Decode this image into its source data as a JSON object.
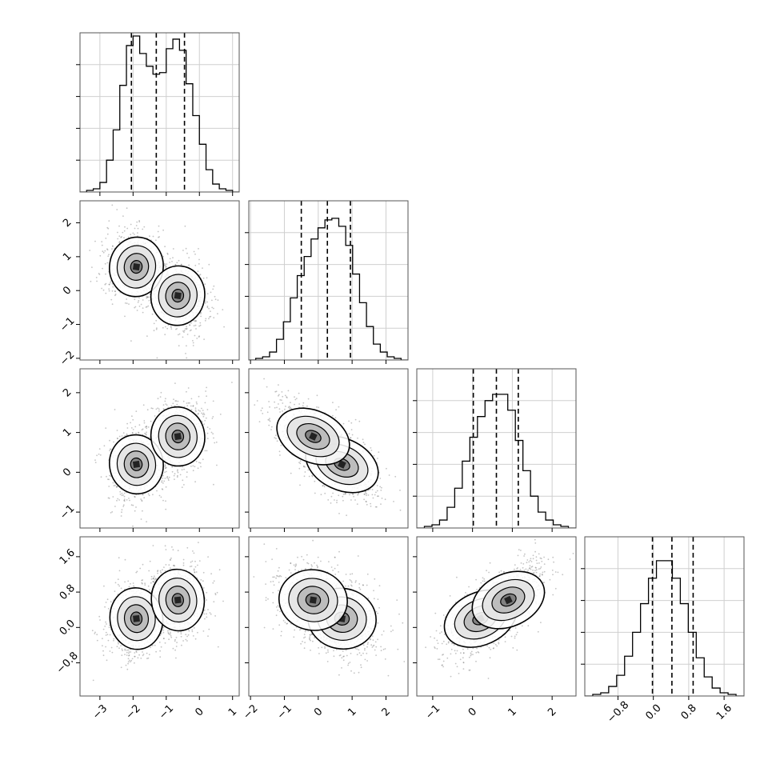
{
  "chart_data": {
    "type": "corner",
    "dimensions": 4,
    "axes": [
      {
        "range": [
          -3.6,
          1.2
        ],
        "ticks": [
          -3,
          -2,
          -1,
          0,
          1
        ],
        "tick_labels": [
          "−3",
          "−2",
          "−1",
          "0",
          "1"
        ]
      },
      {
        "range": [
          -2.05,
          2.65
        ],
        "ticks": [
          -2,
          -1,
          0,
          1,
          2
        ],
        "tick_labels": [
          "−2",
          "−1",
          "0",
          "1",
          "2"
        ]
      },
      {
        "range": [
          -1.4,
          2.6
        ],
        "ticks": [
          -1,
          0,
          1,
          2
        ],
        "tick_labels": [
          "−1",
          "0",
          "1",
          "2"
        ]
      },
      {
        "range": [
          -1.55,
          2.05
        ],
        "ticks": [
          -0.8,
          0.0,
          0.8,
          1.6
        ],
        "tick_labels": [
          "−0.8",
          "0.0",
          "0.8",
          "1.6"
        ]
      }
    ],
    "quantiles": [
      [
        -2.05,
        -1.3,
        -0.45
      ],
      [
        -0.5,
        0.27,
        0.95
      ],
      [
        0.02,
        0.6,
        1.15
      ],
      [
        -0.02,
        0.42,
        0.9
      ]
    ],
    "histograms": [
      [
        0,
        0.01,
        0.02,
        0.06,
        0.2,
        0.39,
        0.67,
        0.92,
        0.98,
        0.87,
        0.79,
        0.74,
        0.75,
        0.9,
        0.96,
        0.89,
        0.68,
        0.48,
        0.3,
        0.14,
        0.05,
        0.02,
        0.01,
        0
      ],
      [
        0,
        0.01,
        0.02,
        0.05,
        0.13,
        0.24,
        0.39,
        0.53,
        0.65,
        0.76,
        0.83,
        0.88,
        0.89,
        0.84,
        0.72,
        0.54,
        0.36,
        0.21,
        0.1,
        0.05,
        0.02,
        0.01,
        0
      ],
      [
        0,
        0.01,
        0.02,
        0.05,
        0.13,
        0.25,
        0.42,
        0.57,
        0.7,
        0.8,
        0.84,
        0.84,
        0.74,
        0.55,
        0.36,
        0.2,
        0.1,
        0.05,
        0.02,
        0.01,
        0
      ],
      [
        0,
        0.01,
        0.02,
        0.06,
        0.13,
        0.25,
        0.4,
        0.58,
        0.74,
        0.85,
        0.85,
        0.74,
        0.58,
        0.4,
        0.24,
        0.12,
        0.05,
        0.02,
        0.01,
        0
      ]
    ],
    "components": [
      {
        "weight": 0.5,
        "mean": [
          -1.9,
          0.7,
          0.2,
          0.2
        ],
        "sd": [
          0.36,
          0.45,
          0.38,
          0.35
        ]
      },
      {
        "weight": 0.5,
        "mean": [
          -0.65,
          -0.15,
          0.9,
          0.62
        ],
        "sd": [
          0.36,
          0.45,
          0.38,
          0.35
        ]
      }
    ],
    "grid": true,
    "xlabel": "",
    "ylabel": "",
    "title": ""
  }
}
